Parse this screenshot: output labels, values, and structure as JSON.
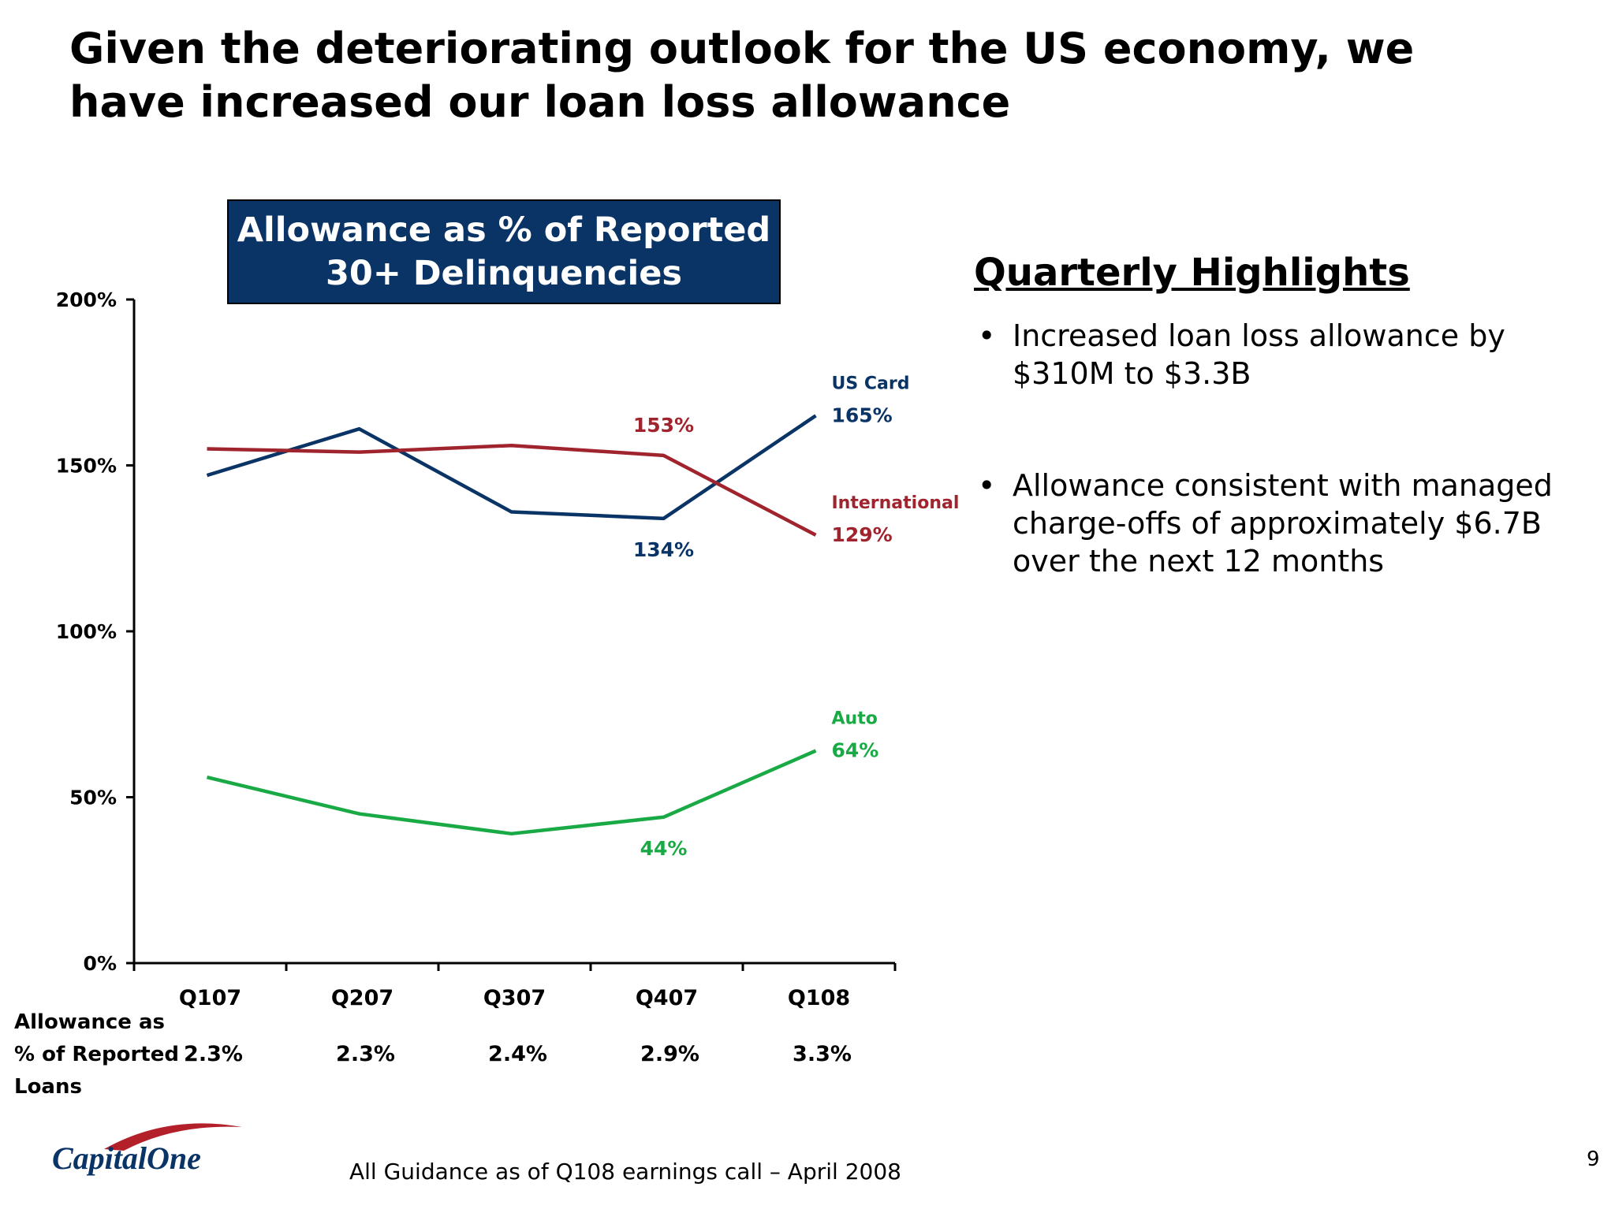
{
  "slide": {
    "title": "Given the deteriorating outlook for the US economy, we have increased our loan loss allowance",
    "footer_note": "All Guidance as of Q108 earnings call – April 2008",
    "page_number": "9",
    "logo_text": "CapitalOne"
  },
  "highlights": {
    "heading": "Quarterly Highlights",
    "bullets": [
      "Increased loan loss allowance by $310M to $3.3B",
      "Allowance consistent with managed charge-offs of approximately $6.7B over the next 12 months"
    ]
  },
  "chart_data": {
    "type": "line",
    "title": "Allowance as % of Reported 30+ Delinquencies",
    "categories": [
      "Q107",
      "Q207",
      "Q307",
      "Q407",
      "Q108"
    ],
    "y_ticks": [
      "0%",
      "50%",
      "100%",
      "150%",
      "200%"
    ],
    "ylim": [
      0,
      200
    ],
    "grid": false,
    "series": [
      {
        "name": "US Card",
        "color": "#0a3466",
        "values": [
          147,
          161,
          136,
          134,
          165
        ],
        "data_labels": [
          null,
          null,
          null,
          "134%",
          "165%"
        ],
        "label_position": [
          "",
          "",
          "",
          "below",
          "right"
        ]
      },
      {
        "name": "International",
        "color": "#a0242d",
        "values": [
          155,
          154,
          156,
          153,
          129
        ],
        "data_labels": [
          null,
          null,
          null,
          "153%",
          "129%"
        ],
        "label_position": [
          "",
          "",
          "",
          "above",
          "right"
        ]
      },
      {
        "name": "Auto",
        "color": "#1aaa45",
        "values": [
          56,
          45,
          39,
          44,
          64
        ],
        "data_labels": [
          null,
          null,
          null,
          "44%",
          "64%"
        ],
        "label_position": [
          "",
          "",
          "",
          "below",
          "right"
        ]
      }
    ],
    "bottom_table": {
      "row_label_lines": [
        "Allowance as",
        "% of Reported",
        "Loans"
      ],
      "values": [
        "2.3%",
        "2.3%",
        "2.4%",
        "2.9%",
        "3.3%"
      ]
    }
  }
}
